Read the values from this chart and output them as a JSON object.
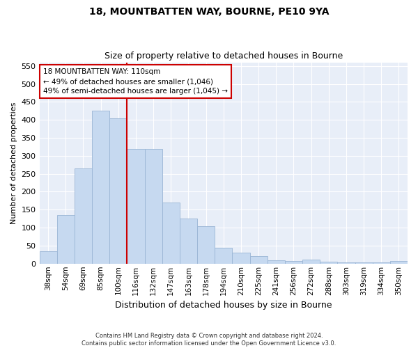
{
  "title1": "18, MOUNTBATTEN WAY, BOURNE, PE10 9YA",
  "title2": "Size of property relative to detached houses in Bourne",
  "xlabel": "Distribution of detached houses by size in Bourne",
  "ylabel": "Number of detached properties",
  "categories": [
    "38sqm",
    "54sqm",
    "69sqm",
    "85sqm",
    "100sqm",
    "116sqm",
    "132sqm",
    "147sqm",
    "163sqm",
    "178sqm",
    "194sqm",
    "210sqm",
    "225sqm",
    "241sqm",
    "256sqm",
    "272sqm",
    "288sqm",
    "303sqm",
    "319sqm",
    "334sqm",
    "350sqm"
  ],
  "values": [
    35,
    135,
    265,
    425,
    405,
    320,
    320,
    170,
    125,
    105,
    45,
    30,
    20,
    10,
    8,
    12,
    5,
    4,
    3,
    3,
    7
  ],
  "bar_color": "#c6d9f0",
  "bar_edge_color": "#9ab5d5",
  "vline_color": "#cc0000",
  "annotation_text": "18 MOUNTBATTEN WAY: 110sqm\n← 49% of detached houses are smaller (1,046)\n49% of semi-detached houses are larger (1,045) →",
  "annotation_box_color": "white",
  "annotation_box_edge": "#cc0000",
  "ylim": [
    0,
    560
  ],
  "yticks": [
    0,
    50,
    100,
    150,
    200,
    250,
    300,
    350,
    400,
    450,
    500,
    550
  ],
  "background_color": "#e8eef8",
  "grid_color": "#ffffff",
  "footer1": "Contains HM Land Registry data © Crown copyright and database right 2024.",
  "footer2": "Contains public sector information licensed under the Open Government Licence v3.0."
}
